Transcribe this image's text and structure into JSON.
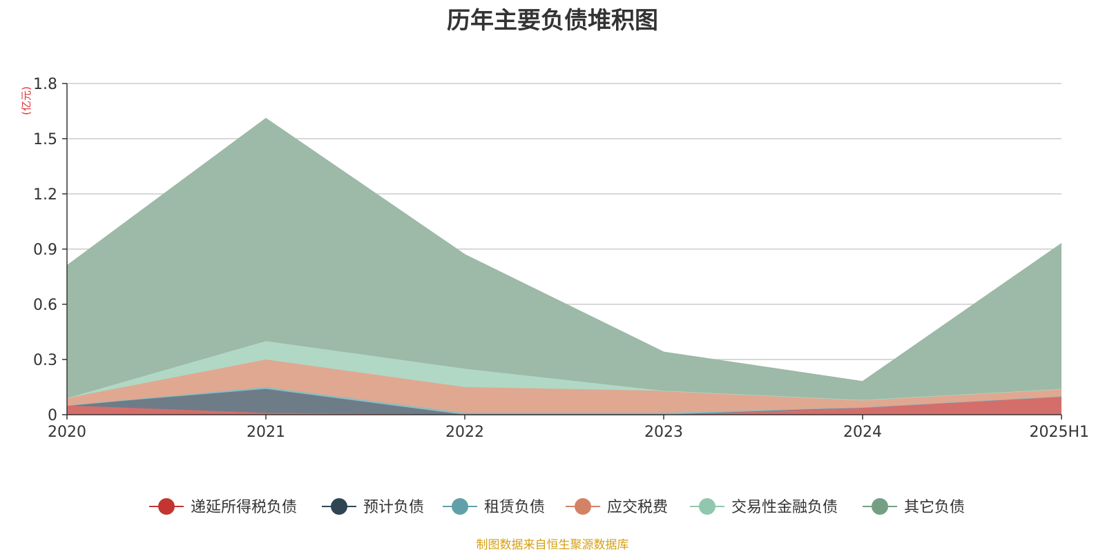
{
  "chart_data": {
    "type": "area",
    "title": "历年主要负债堆积图",
    "unit_label": "(亿元)",
    "categories": [
      "2020",
      "2021",
      "2022",
      "2023",
      "2024",
      "2025H1"
    ],
    "ylim": [
      0,
      1.8
    ],
    "yticks": [
      "0",
      "0.3",
      "0.6",
      "0.9",
      "1.2",
      "1.5",
      "1.8"
    ],
    "stacked": true,
    "grid": true,
    "legend_position": "bottom",
    "series": [
      {
        "name": "递延所得税负债",
        "color": "#c23531",
        "area_color": "#d46e6b",
        "values": [
          0.05,
          0.01,
          0.0,
          0.0,
          0.04,
          0.1
        ]
      },
      {
        "name": "预计负债",
        "color": "#2f4554",
        "area_color": "#6e7c88",
        "values": [
          0.0,
          0.13,
          0.0,
          0.0,
          0.0,
          0.0
        ]
      },
      {
        "name": "租赁负债",
        "color": "#61a0a8",
        "area_color": "#8cbcc2",
        "values": [
          0.0,
          0.01,
          0.01,
          0.01,
          0.0,
          0.0
        ]
      },
      {
        "name": "应交税费",
        "color": "#d48265",
        "area_color": "#e0a890",
        "values": [
          0.04,
          0.15,
          0.14,
          0.12,
          0.04,
          0.04
        ]
      },
      {
        "name": "交易性金融负债",
        "color": "#91c7ae",
        "area_color": "#b0d8c5",
        "values": [
          0.0,
          0.1,
          0.1,
          0.0,
          0.0,
          0.0
        ]
      },
      {
        "name": "其它负债",
        "color": "#749f83",
        "area_color": "#9db9a7",
        "values": [
          0.72,
          1.21,
          0.62,
          0.21,
          0.1,
          0.79
        ]
      }
    ]
  },
  "footer": {
    "source": "制图数据来自恒生聚源数据库"
  }
}
